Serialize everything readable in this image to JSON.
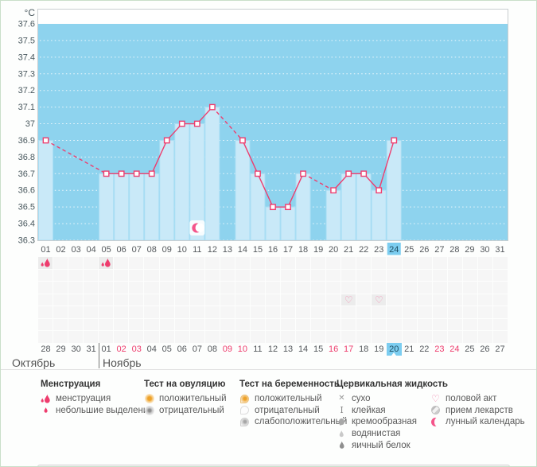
{
  "chart_data": {
    "type": "line+bar",
    "unit": "°C",
    "ylim": [
      36.3,
      37.6
    ],
    "ytick_step": 0.1,
    "yticks": [
      "37.6",
      "37.5",
      "37.4",
      "37.3",
      "37.2",
      "37.1",
      "37",
      "36.9",
      "36.8",
      "36.7",
      "36.6",
      "36.5",
      "36.4",
      "36.3"
    ],
    "x_days": [
      "01",
      "02",
      "03",
      "04",
      "05",
      "06",
      "07",
      "08",
      "09",
      "10",
      "11",
      "12",
      "13",
      "14",
      "15",
      "16",
      "17",
      "18",
      "19",
      "20",
      "21",
      "22",
      "23",
      "24",
      "25",
      "26",
      "27",
      "28",
      "29",
      "30",
      "31"
    ],
    "points": [
      {
        "day": 1,
        "temp": 36.9
      },
      {
        "day": 5,
        "temp": 36.7
      },
      {
        "day": 6,
        "temp": 36.7
      },
      {
        "day": 7,
        "temp": 36.7
      },
      {
        "day": 8,
        "temp": 36.7
      },
      {
        "day": 9,
        "temp": 36.9
      },
      {
        "day": 10,
        "temp": 37.0
      },
      {
        "day": 11,
        "temp": 37.0
      },
      {
        "day": 12,
        "temp": 37.1
      },
      {
        "day": 14,
        "temp": 36.9
      },
      {
        "day": 15,
        "temp": 36.7
      },
      {
        "day": 16,
        "temp": 36.5
      },
      {
        "day": 17,
        "temp": 36.5
      },
      {
        "day": 18,
        "temp": 36.7
      },
      {
        "day": 20,
        "temp": 36.6
      },
      {
        "day": 21,
        "temp": 36.7
      },
      {
        "day": 22,
        "temp": 36.7
      },
      {
        "day": 23,
        "temp": 36.6
      },
      {
        "day": 24,
        "temp": 36.9
      }
    ],
    "gap_segments_dashed": true,
    "highlight_day": "24",
    "annotations": [
      {
        "day": 11,
        "icon": "lunar-moon"
      }
    ],
    "legend_position": "bottom",
    "grid": "dotted-horizontal",
    "colors": {
      "plot_bg": "#8ed3ee",
      "plot_top_band": "#ffffff",
      "bar": "#c9e9f8",
      "bar_edge": "#a9def4",
      "line": "#ee3d6e",
      "marker_fill": "#ffffff",
      "grid_dots": "#ffffff",
      "highlight": "#7ccdf0"
    }
  },
  "symbol_grid": {
    "rows": 7,
    "markers": [
      {
        "row": 1,
        "col": 1,
        "icon": "menstruation"
      },
      {
        "row": 1,
        "col": 5,
        "icon": "menstruation"
      },
      {
        "row": 4,
        "col": 21,
        "icon": "intercourse-heart"
      },
      {
        "row": 4,
        "col": 23,
        "icon": "intercourse-heart"
      }
    ]
  },
  "calendar_row": {
    "dates": [
      {
        "label": "28"
      },
      {
        "label": "29"
      },
      {
        "label": "30"
      },
      {
        "label": "31"
      },
      {
        "label": "01"
      },
      {
        "label": "02",
        "red": true
      },
      {
        "label": "03",
        "red": true
      },
      {
        "label": "04"
      },
      {
        "label": "05"
      },
      {
        "label": "06"
      },
      {
        "label": "07"
      },
      {
        "label": "08"
      },
      {
        "label": "09",
        "red": true
      },
      {
        "label": "10",
        "red": true
      },
      {
        "label": "11"
      },
      {
        "label": "12"
      },
      {
        "label": "13"
      },
      {
        "label": "14"
      },
      {
        "label": "15"
      },
      {
        "label": "16",
        "red": true
      },
      {
        "label": "17",
        "red": true
      },
      {
        "label": "18"
      },
      {
        "label": "19"
      },
      {
        "label": "20",
        "today": true
      },
      {
        "label": "21"
      },
      {
        "label": "22"
      },
      {
        "label": "23",
        "red": true
      },
      {
        "label": "24",
        "red": true
      },
      {
        "label": "25"
      },
      {
        "label": "26"
      },
      {
        "label": "27"
      }
    ],
    "months": [
      {
        "name": "Октябрь"
      },
      {
        "name": "Ноябрь"
      }
    ]
  },
  "legend": {
    "groups": [
      {
        "title": "Менструация",
        "items": [
          {
            "icon": "menstruation",
            "label": "менструация"
          },
          {
            "icon": "small-drop",
            "label": "небольшие выделения"
          }
        ]
      },
      {
        "title": "Тест на овуляцию",
        "items": [
          {
            "icon": "ovulation-positive",
            "label": "положительный"
          },
          {
            "icon": "ovulation-negative",
            "label": "отрицательный"
          }
        ]
      },
      {
        "title": "Тест на беременность",
        "items": [
          {
            "icon": "pregnancy-positive",
            "label": "положительный"
          },
          {
            "icon": "pregnancy-negative",
            "label": "отрицательный"
          },
          {
            "icon": "pregnancy-weak",
            "label": "слабоположительный"
          }
        ]
      },
      {
        "title": "Цервикальная жидкость",
        "items": [
          {
            "icon": "dry-cross",
            "label": "сухо"
          },
          {
            "icon": "sticky",
            "label": "клейкая"
          },
          {
            "icon": "creamy",
            "label": "кремообразная"
          },
          {
            "icon": "watery",
            "label": "водянистая"
          },
          {
            "icon": "eggwhite",
            "label": "яичный белок"
          }
        ]
      },
      {
        "title": "",
        "items": [
          {
            "icon": "intercourse-heart",
            "label": "половой акт"
          },
          {
            "icon": "pill",
            "label": "прием лекарств"
          },
          {
            "icon": "lunar-moon",
            "label": "лунный календарь"
          }
        ]
      }
    ]
  }
}
